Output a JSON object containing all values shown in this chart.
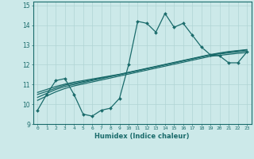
{
  "xlabel": "Humidex (Indice chaleur)",
  "xlim": [
    -0.5,
    23.5
  ],
  "ylim": [
    9,
    15.2
  ],
  "yticks": [
    9,
    10,
    11,
    12,
    13,
    14,
    15
  ],
  "xticks": [
    0,
    1,
    2,
    3,
    4,
    5,
    6,
    7,
    8,
    9,
    10,
    11,
    12,
    13,
    14,
    15,
    16,
    17,
    18,
    19,
    20,
    21,
    22,
    23
  ],
  "bg_color": "#cce9e9",
  "line_color": "#1a6b6b",
  "grid_color": "#b0d4d4",
  "volatile_line": [
    9.7,
    10.5,
    11.2,
    11.3,
    10.5,
    9.5,
    9.4,
    9.7,
    9.8,
    10.3,
    12.0,
    14.2,
    14.1,
    13.65,
    14.6,
    13.9,
    14.1,
    13.5,
    12.9,
    12.5,
    12.45,
    12.1,
    12.1,
    12.65
  ],
  "trend_lines": [
    [
      10.35,
      10.55,
      10.75,
      10.9,
      11.0,
      11.1,
      11.2,
      11.3,
      11.4,
      11.5,
      11.6,
      11.7,
      11.8,
      11.9,
      12.0,
      12.1,
      12.2,
      12.3,
      12.4,
      12.5,
      12.55,
      12.6,
      12.65,
      12.7
    ],
    [
      10.5,
      10.65,
      10.82,
      10.97,
      11.06,
      11.15,
      11.24,
      11.33,
      11.42,
      11.5,
      11.6,
      11.7,
      11.8,
      11.9,
      12.0,
      12.1,
      12.2,
      12.3,
      12.4,
      12.5,
      12.58,
      12.65,
      12.7,
      12.75
    ],
    [
      10.2,
      10.42,
      10.63,
      10.8,
      10.93,
      11.03,
      11.13,
      11.23,
      11.33,
      11.43,
      11.53,
      11.63,
      11.73,
      11.83,
      11.93,
      12.03,
      12.13,
      12.23,
      12.33,
      12.43,
      12.48,
      12.53,
      12.58,
      12.62
    ],
    [
      10.6,
      10.75,
      10.9,
      11.02,
      11.12,
      11.2,
      11.28,
      11.36,
      11.44,
      11.52,
      11.62,
      11.72,
      11.82,
      11.92,
      12.02,
      12.12,
      12.22,
      12.32,
      12.42,
      12.52,
      12.6,
      12.67,
      12.72,
      12.77
    ]
  ]
}
